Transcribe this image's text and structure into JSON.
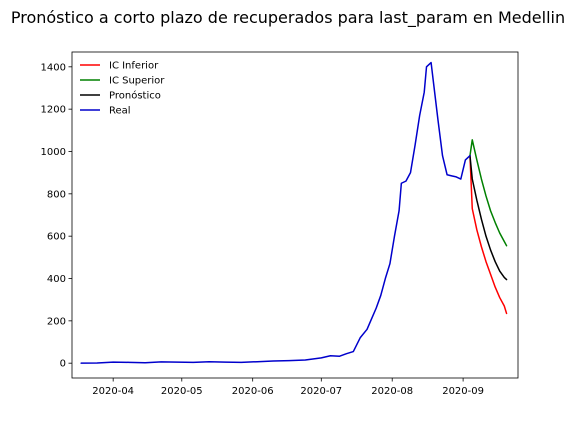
{
  "chart_data": {
    "type": "line",
    "title": "Pronóstico a corto plazo de recuperados para last_param en Medellin",
    "xlabel": "",
    "ylabel": "",
    "ylim": [
      -70,
      1470
    ],
    "xlim": [
      "2020-03-14",
      "2020-09-25"
    ],
    "grid": false,
    "legend_position": "top-left",
    "x_ticks": [
      "2020-04",
      "2020-05",
      "2020-06",
      "2020-07",
      "2020-08",
      "2020-09"
    ],
    "y_ticks": [
      0,
      200,
      400,
      600,
      800,
      1000,
      1200,
      1400
    ],
    "series": [
      {
        "name": "IC Inferior",
        "color": "#ff0000",
        "points": [
          [
            "2020-09-04",
            980
          ],
          [
            "2020-09-05",
            730
          ],
          [
            "2020-09-07",
            630
          ],
          [
            "2020-09-09",
            550
          ],
          [
            "2020-09-11",
            480
          ],
          [
            "2020-09-13",
            420
          ],
          [
            "2020-09-15",
            360
          ],
          [
            "2020-09-17",
            310
          ],
          [
            "2020-09-19",
            270
          ],
          [
            "2020-09-20",
            235
          ]
        ]
      },
      {
        "name": "IC Superior",
        "color": "#008000",
        "points": [
          [
            "2020-09-04",
            980
          ],
          [
            "2020-09-05",
            1055
          ],
          [
            "2020-09-07",
            960
          ],
          [
            "2020-09-09",
            870
          ],
          [
            "2020-09-11",
            790
          ],
          [
            "2020-09-13",
            720
          ],
          [
            "2020-09-15",
            665
          ],
          [
            "2020-09-17",
            615
          ],
          [
            "2020-09-19",
            575
          ],
          [
            "2020-09-20",
            555
          ]
        ]
      },
      {
        "name": "Pronóstico",
        "color": "#000000",
        "points": [
          [
            "2020-09-04",
            980
          ],
          [
            "2020-09-05",
            870
          ],
          [
            "2020-09-07",
            770
          ],
          [
            "2020-09-09",
            680
          ],
          [
            "2020-09-11",
            600
          ],
          [
            "2020-09-13",
            535
          ],
          [
            "2020-09-15",
            480
          ],
          [
            "2020-09-17",
            435
          ],
          [
            "2020-09-19",
            405
          ],
          [
            "2020-09-20",
            395
          ]
        ]
      },
      {
        "name": "Real",
        "color": "#0000cc",
        "points": [
          [
            "2020-03-18",
            0
          ],
          [
            "2020-03-25",
            1
          ],
          [
            "2020-04-01",
            5
          ],
          [
            "2020-04-08",
            4
          ],
          [
            "2020-04-15",
            2
          ],
          [
            "2020-04-22",
            6
          ],
          [
            "2020-04-29",
            5
          ],
          [
            "2020-05-06",
            4
          ],
          [
            "2020-05-13",
            7
          ],
          [
            "2020-05-20",
            5
          ],
          [
            "2020-05-27",
            4
          ],
          [
            "2020-06-03",
            7
          ],
          [
            "2020-06-10",
            10
          ],
          [
            "2020-06-17",
            12
          ],
          [
            "2020-06-24",
            15
          ],
          [
            "2020-07-01",
            25
          ],
          [
            "2020-07-05",
            35
          ],
          [
            "2020-07-09",
            33
          ],
          [
            "2020-07-12",
            45
          ],
          [
            "2020-07-15",
            55
          ],
          [
            "2020-07-18",
            120
          ],
          [
            "2020-07-21",
            160
          ],
          [
            "2020-07-23",
            210
          ],
          [
            "2020-07-25",
            260
          ],
          [
            "2020-07-27",
            320
          ],
          [
            "2020-07-29",
            400
          ],
          [
            "2020-07-31",
            470
          ],
          [
            "2020-08-02",
            600
          ],
          [
            "2020-08-04",
            720
          ],
          [
            "2020-08-05",
            850
          ],
          [
            "2020-08-07",
            860
          ],
          [
            "2020-08-09",
            900
          ],
          [
            "2020-08-11",
            1030
          ],
          [
            "2020-08-13",
            1170
          ],
          [
            "2020-08-15",
            1280
          ],
          [
            "2020-08-16",
            1400
          ],
          [
            "2020-08-18",
            1420
          ],
          [
            "2020-08-19",
            1330
          ],
          [
            "2020-08-21",
            1150
          ],
          [
            "2020-08-23",
            980
          ],
          [
            "2020-08-25",
            890
          ],
          [
            "2020-08-27",
            885
          ],
          [
            "2020-08-29",
            880
          ],
          [
            "2020-08-31",
            870
          ],
          [
            "2020-09-02",
            960
          ],
          [
            "2020-09-04",
            980
          ]
        ]
      }
    ]
  }
}
